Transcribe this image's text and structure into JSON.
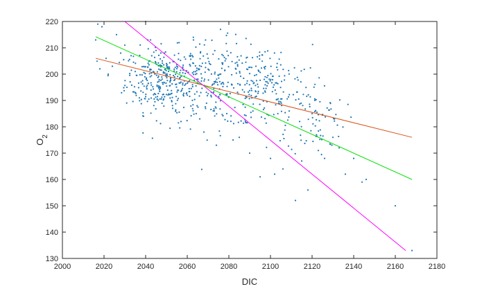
{
  "chart_data": {
    "type": "scatter",
    "title": "",
    "xlabel": "DIC",
    "ylabel_main": "O",
    "ylabel_sub": "2",
    "xlim": [
      2000,
      2180
    ],
    "ylim": [
      130,
      220
    ],
    "xticks": [
      2000,
      2020,
      2040,
      2060,
      2080,
      2100,
      2120,
      2140,
      2160,
      2180
    ],
    "yticks": [
      130,
      140,
      150,
      160,
      170,
      180,
      190,
      200,
      210,
      220
    ],
    "grid": false,
    "box": true,
    "point_color": "#1f77b4",
    "lines": [
      {
        "color": "#d95319",
        "x": [
          2016,
          2168
        ],
        "y": [
          206,
          176
        ]
      },
      {
        "color": "#00e000",
        "x": [
          2016,
          2168
        ],
        "y": [
          214.2,
          160
        ]
      },
      {
        "color": "#ff00ff",
        "x": [
          2030,
          2165
        ],
        "y": [
          220,
          133
        ]
      }
    ],
    "scatter": {
      "sample_points": [
        [
          2016,
          213
        ],
        [
          2017,
          219
        ],
        [
          2018,
          202
        ],
        [
          2019,
          218
        ],
        [
          2020,
          221
        ],
        [
          2021,
          206
        ],
        [
          2022,
          200
        ],
        [
          2024,
          203
        ],
        [
          2026,
          215
        ],
        [
          2028,
          208
        ],
        [
          2030,
          211
        ],
        [
          2031,
          195
        ],
        [
          2033,
          207
        ],
        [
          2035,
          201
        ],
        [
          2037,
          191
        ],
        [
          2039,
          184
        ],
        [
          2040,
          220
        ],
        [
          2041,
          213
        ],
        [
          2042,
          205
        ],
        [
          2045,
          209
        ],
        [
          2048,
          205
        ],
        [
          2050,
          204
        ],
        [
          2053,
          187
        ],
        [
          2055,
          203
        ],
        [
          2057,
          182
        ],
        [
          2060,
          192
        ],
        [
          2063,
          213
        ],
        [
          2066,
          183
        ],
        [
          2068,
          178
        ],
        [
          2070,
          206
        ],
        [
          2074,
          173
        ],
        [
          2076,
          217
        ],
        [
          2079,
          185
        ],
        [
          2082,
          175
        ],
        [
          2085,
          176
        ],
        [
          2088,
          182
        ],
        [
          2090,
          170
        ],
        [
          2093,
          203
        ],
        [
          2095,
          161
        ],
        [
          2097,
          198
        ],
        [
          2100,
          168
        ],
        [
          2102,
          162
        ],
        [
          2104,
          189
        ],
        [
          2106,
          164
        ],
        [
          2109,
          186
        ],
        [
          2112,
          152
        ],
        [
          2114,
          182
        ],
        [
          2115,
          167
        ],
        [
          2118,
          156
        ],
        [
          2120,
          185
        ],
        [
          2123,
          171
        ],
        [
          2126,
          168
        ],
        [
          2130,
          176
        ],
        [
          2133,
          172
        ],
        [
          2136,
          162
        ],
        [
          2140,
          168
        ],
        [
          2144,
          159
        ],
        [
          2146,
          160
        ],
        [
          2160,
          150
        ],
        [
          2168,
          133
        ]
      ],
      "clusters": [
        {
          "cx": 2048,
          "cy": 198,
          "sx": 9,
          "sy": 6,
          "n": 280
        },
        {
          "cx": 2075,
          "cy": 196,
          "sx": 14,
          "sy": 8,
          "n": 260
        },
        {
          "cx": 2100,
          "cy": 195,
          "sx": 10,
          "sy": 8,
          "n": 130
        },
        {
          "cx": 2122,
          "cy": 183,
          "sx": 7,
          "sy": 7,
          "n": 70
        }
      ]
    }
  }
}
